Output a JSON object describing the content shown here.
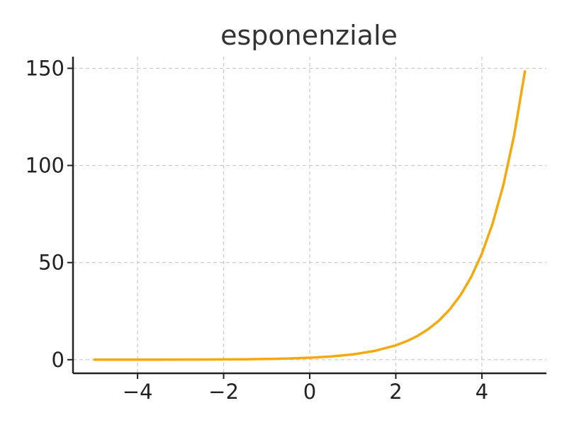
{
  "chart_data": {
    "type": "line",
    "title": "esponenziale",
    "xlabel": "",
    "ylabel": "",
    "xlim": [
      -5.5,
      5.5
    ],
    "ylim": [
      -7,
      156
    ],
    "xticks": [
      -4,
      -2,
      0,
      2,
      4
    ],
    "xtick_labels": [
      "−4",
      "−2",
      "0",
      "2",
      "4"
    ],
    "yticks": [
      0,
      50,
      100,
      150
    ],
    "ytick_labels": [
      "0",
      "50",
      "100",
      "150"
    ],
    "grid": true,
    "series": [
      {
        "color": "#f5a90f",
        "x": [
          -5,
          -4.5,
          -4,
          -3.5,
          -3,
          -2.5,
          -2,
          -1.5,
          -1,
          -0.5,
          0,
          0.5,
          1,
          1.5,
          2,
          2.25,
          2.5,
          2.75,
          3,
          3.25,
          3.5,
          3.75,
          4,
          4.25,
          4.5,
          4.75,
          5
        ],
        "y": [
          0.007,
          0.011,
          0.018,
          0.03,
          0.05,
          0.082,
          0.135,
          0.223,
          0.368,
          0.607,
          1,
          1.649,
          2.718,
          4.482,
          7.389,
          9.488,
          12.182,
          15.643,
          20.086,
          25.79,
          33.115,
          42.521,
          54.598,
          70.105,
          90.017,
          115.584,
          148.413
        ]
      }
    ]
  }
}
